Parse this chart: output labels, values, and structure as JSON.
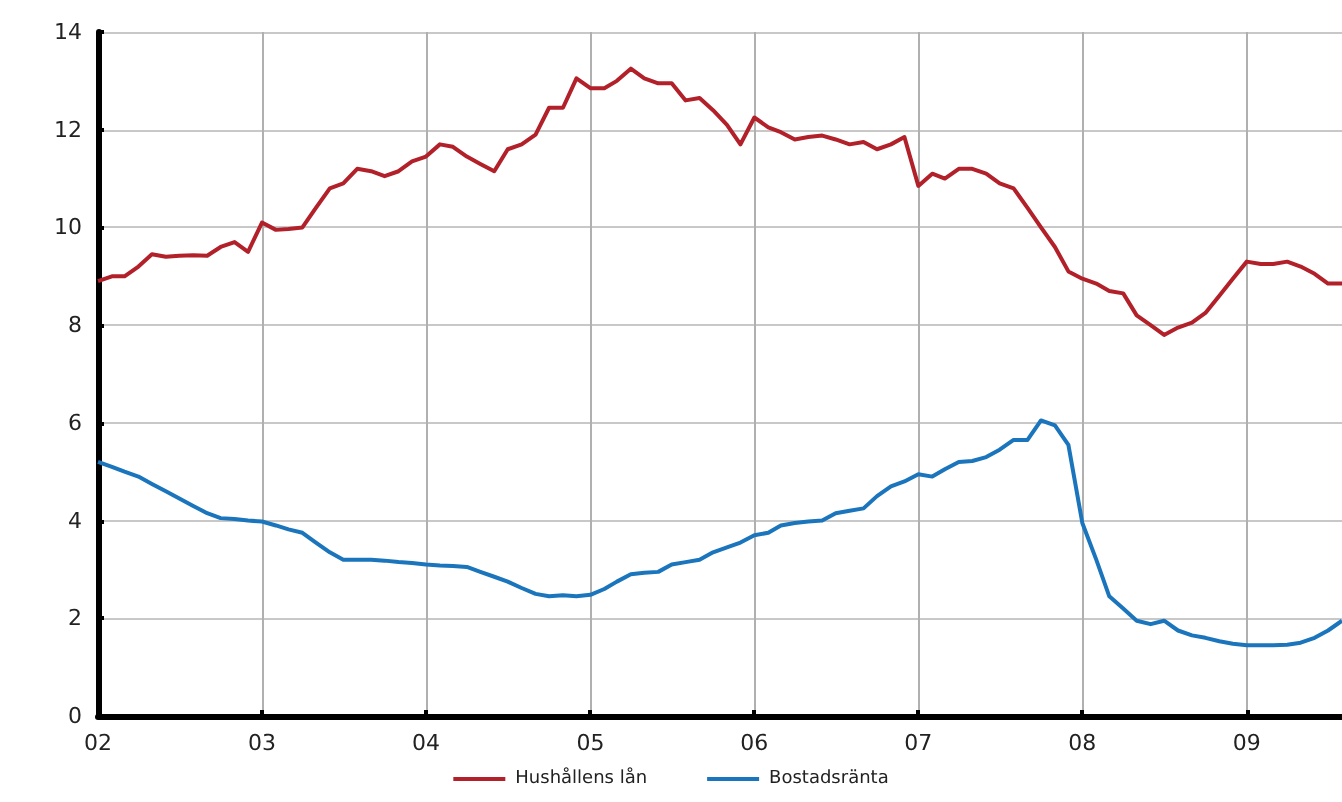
{
  "chart_data": {
    "type": "line",
    "xlim": [
      "2002-01",
      "2009-08"
    ],
    "xticks": [
      {
        "value": "2002-01",
        "label": "02"
      },
      {
        "value": "2003-01",
        "label": "03"
      },
      {
        "value": "2004-01",
        "label": "04"
      },
      {
        "value": "2005-01",
        "label": "05"
      },
      {
        "value": "2006-01",
        "label": "06"
      },
      {
        "value": "2007-01",
        "label": "07"
      },
      {
        "value": "2008-01",
        "label": "08"
      },
      {
        "value": "2009-01",
        "label": "09"
      }
    ],
    "ylim": [
      0,
      14
    ],
    "yticks": [
      0,
      2,
      4,
      6,
      8,
      10,
      12,
      14
    ],
    "grid": true,
    "legend": "bottom",
    "marker": "none",
    "line_style": "solid",
    "x": [
      "2002-01",
      "2002-02",
      "2002-03",
      "2002-04",
      "2002-05",
      "2002-06",
      "2002-07",
      "2002-08",
      "2002-09",
      "2002-10",
      "2002-11",
      "2002-12",
      "2003-01",
      "2003-02",
      "2003-03",
      "2003-04",
      "2003-05",
      "2003-06",
      "2003-07",
      "2003-08",
      "2003-09",
      "2003-10",
      "2003-11",
      "2003-12",
      "2004-01",
      "2004-02",
      "2004-03",
      "2004-04",
      "2004-05",
      "2004-06",
      "2004-07",
      "2004-08",
      "2004-09",
      "2004-10",
      "2004-11",
      "2004-12",
      "2005-01",
      "2005-02",
      "2005-03",
      "2005-04",
      "2005-05",
      "2005-06",
      "2005-07",
      "2005-08",
      "2005-09",
      "2005-10",
      "2005-11",
      "2005-12",
      "2006-01",
      "2006-02",
      "2006-03",
      "2006-04",
      "2006-05",
      "2006-06",
      "2006-07",
      "2006-08",
      "2006-09",
      "2006-10",
      "2006-11",
      "2006-12",
      "2007-01",
      "2007-02",
      "2007-03",
      "2007-04",
      "2007-05",
      "2007-06",
      "2007-07",
      "2007-08",
      "2007-09",
      "2007-10",
      "2007-11",
      "2007-12",
      "2008-01",
      "2008-02",
      "2008-03",
      "2008-04",
      "2008-05",
      "2008-06",
      "2008-07",
      "2008-08",
      "2008-09",
      "2008-10",
      "2008-11",
      "2008-12",
      "2009-01",
      "2009-02",
      "2009-03",
      "2009-04",
      "2009-05",
      "2009-06",
      "2009-07",
      "2009-08"
    ],
    "series": [
      {
        "name": "Hushållens lån",
        "color": "#b2202a",
        "values": [
          8.9,
          9.0,
          9.0,
          9.2,
          9.45,
          9.4,
          9.42,
          9.43,
          9.42,
          9.6,
          9.7,
          9.5,
          10.1,
          9.95,
          9.97,
          10.0,
          10.4,
          10.8,
          10.9,
          11.2,
          11.15,
          11.05,
          11.15,
          11.35,
          11.45,
          11.7,
          11.65,
          11.45,
          11.3,
          11.15,
          11.6,
          11.7,
          11.9,
          12.45,
          12.45,
          13.05,
          12.85,
          12.85,
          13.0,
          13.25,
          13.05,
          12.95,
          12.95,
          12.6,
          12.65,
          12.4,
          12.1,
          11.7,
          12.25,
          12.05,
          11.95,
          11.8,
          11.85,
          11.88,
          11.8,
          11.7,
          11.75,
          11.6,
          11.7,
          11.85,
          10.85,
          11.1,
          11.0,
          11.2,
          11.2,
          11.1,
          10.9,
          10.8,
          10.4,
          10.0,
          9.6,
          9.1,
          8.95,
          8.85,
          8.7,
          8.65,
          8.2,
          8.0,
          7.8,
          7.95,
          8.05,
          8.25,
          8.6,
          8.95,
          9.3,
          9.25,
          9.25,
          9.3,
          9.2,
          9.05,
          8.85,
          8.85
        ]
      },
      {
        "name": "Bostadsränta",
        "color": "#1a75bc",
        "values": [
          5.2,
          5.1,
          5.0,
          4.9,
          4.75,
          4.6,
          4.45,
          4.3,
          4.15,
          4.05,
          4.03,
          4.0,
          3.98,
          3.9,
          3.82,
          3.75,
          3.55,
          3.35,
          3.2,
          3.2,
          3.2,
          3.18,
          3.15,
          3.13,
          3.1,
          3.08,
          3.07,
          3.05,
          2.95,
          2.85,
          2.75,
          2.62,
          2.5,
          2.45,
          2.47,
          2.45,
          2.48,
          2.6,
          2.75,
          2.9,
          2.93,
          2.95,
          3.1,
          3.15,
          3.2,
          3.35,
          3.45,
          3.55,
          3.7,
          3.75,
          3.9,
          3.95,
          3.98,
          4.0,
          4.15,
          4.2,
          4.25,
          4.5,
          4.7,
          4.8,
          4.95,
          4.9,
          5.05,
          5.2,
          5.22,
          5.3,
          5.45,
          5.65,
          5.65,
          6.05,
          5.95,
          5.55,
          3.95,
          3.2,
          2.45,
          2.2,
          1.95,
          1.88,
          1.95,
          1.75,
          1.65,
          1.6,
          1.53,
          1.48,
          1.45,
          1.45,
          1.45,
          1.46,
          1.5,
          1.6,
          1.75,
          1.95
        ]
      }
    ]
  }
}
